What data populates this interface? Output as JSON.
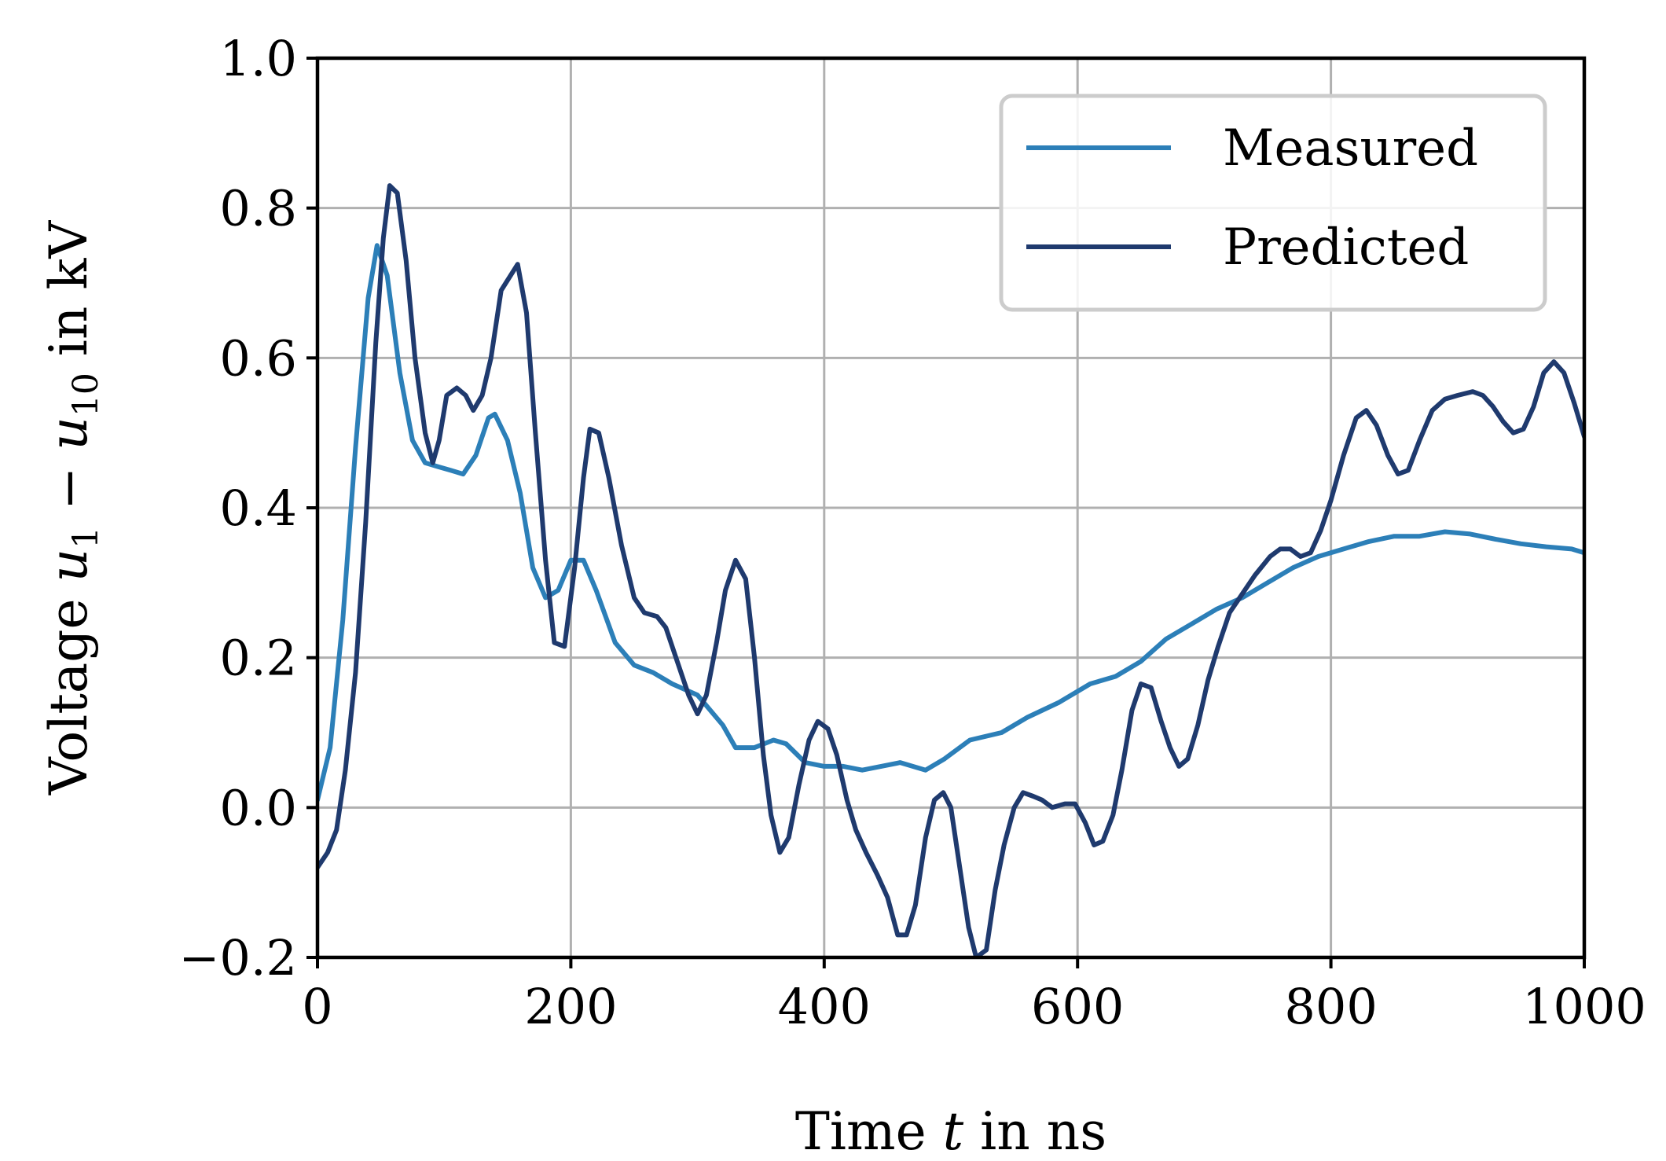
{
  "chart_data": {
    "type": "line",
    "title": "",
    "xlabel": "Time t in ns",
    "ylabel": "Voltage u1 − u10 in kV",
    "xlabel_parts": {
      "prefix": "Time ",
      "var": "t",
      "suffix": " in ns"
    },
    "ylabel_parts": {
      "prefix": "Voltage ",
      "var1": "u",
      "sub1": "1",
      "mid": " − ",
      "var2": "u",
      "sub2": "10",
      "suffix": " in kV"
    },
    "xlim": [
      0,
      1000
    ],
    "ylim": [
      -0.2,
      1.0
    ],
    "xticks": [
      0,
      200,
      400,
      600,
      800,
      1000
    ],
    "yticks": [
      -0.2,
      0.0,
      0.2,
      0.4,
      0.6,
      0.8,
      1.0
    ],
    "xtick_labels": [
      "0",
      "200",
      "400",
      "600",
      "800",
      "1000"
    ],
    "ytick_labels": [
      "−0.2",
      "0.0",
      "0.2",
      "0.4",
      "0.6",
      "0.8",
      "1.0"
    ],
    "grid": true,
    "legend_position": "top-right",
    "series": [
      {
        "name": "Measured",
        "color": "#2c7fb8",
        "points": [
          [
            0,
            0.01
          ],
          [
            10,
            0.08
          ],
          [
            20,
            0.25
          ],
          [
            30,
            0.48
          ],
          [
            40,
            0.68
          ],
          [
            47,
            0.75
          ],
          [
            55,
            0.71
          ],
          [
            65,
            0.58
          ],
          [
            75,
            0.49
          ],
          [
            85,
            0.46
          ],
          [
            95,
            0.455
          ],
          [
            105,
            0.45
          ],
          [
            115,
            0.445
          ],
          [
            125,
            0.47
          ],
          [
            135,
            0.52
          ],
          [
            140,
            0.525
          ],
          [
            150,
            0.49
          ],
          [
            160,
            0.42
          ],
          [
            170,
            0.32
          ],
          [
            180,
            0.28
          ],
          [
            190,
            0.29
          ],
          [
            200,
            0.33
          ],
          [
            210,
            0.33
          ],
          [
            220,
            0.29
          ],
          [
            235,
            0.22
          ],
          [
            250,
            0.19
          ],
          [
            265,
            0.18
          ],
          [
            280,
            0.165
          ],
          [
            300,
            0.15
          ],
          [
            320,
            0.11
          ],
          [
            330,
            0.08
          ],
          [
            345,
            0.08
          ],
          [
            360,
            0.09
          ],
          [
            370,
            0.085
          ],
          [
            385,
            0.06
          ],
          [
            400,
            0.055
          ],
          [
            415,
            0.055
          ],
          [
            430,
            0.05
          ],
          [
            445,
            0.055
          ],
          [
            460,
            0.06
          ],
          [
            480,
            0.05
          ],
          [
            495,
            0.065
          ],
          [
            515,
            0.09
          ],
          [
            540,
            0.1
          ],
          [
            560,
            0.12
          ],
          [
            585,
            0.14
          ],
          [
            610,
            0.165
          ],
          [
            630,
            0.175
          ],
          [
            650,
            0.195
          ],
          [
            670,
            0.225
          ],
          [
            690,
            0.245
          ],
          [
            710,
            0.265
          ],
          [
            730,
            0.28
          ],
          [
            750,
            0.3
          ],
          [
            770,
            0.32
          ],
          [
            790,
            0.335
          ],
          [
            810,
            0.345
          ],
          [
            830,
            0.355
          ],
          [
            850,
            0.362
          ],
          [
            870,
            0.362
          ],
          [
            890,
            0.368
          ],
          [
            910,
            0.365
          ],
          [
            930,
            0.358
          ],
          [
            950,
            0.352
          ],
          [
            970,
            0.348
          ],
          [
            990,
            0.345
          ],
          [
            1000,
            0.34
          ]
        ]
      },
      {
        "name": "Predicted",
        "color": "#1f3a6e",
        "points": [
          [
            0,
            -0.08
          ],
          [
            8,
            -0.06
          ],
          [
            15,
            -0.03
          ],
          [
            22,
            0.05
          ],
          [
            30,
            0.18
          ],
          [
            38,
            0.38
          ],
          [
            46,
            0.62
          ],
          [
            52,
            0.76
          ],
          [
            57,
            0.83
          ],
          [
            63,
            0.82
          ],
          [
            70,
            0.73
          ],
          [
            77,
            0.6
          ],
          [
            85,
            0.5
          ],
          [
            91,
            0.46
          ],
          [
            96,
            0.49
          ],
          [
            102,
            0.55
          ],
          [
            110,
            0.56
          ],
          [
            117,
            0.55
          ],
          [
            123,
            0.53
          ],
          [
            130,
            0.55
          ],
          [
            137,
            0.6
          ],
          [
            145,
            0.69
          ],
          [
            158,
            0.725
          ],
          [
            165,
            0.66
          ],
          [
            172,
            0.5
          ],
          [
            180,
            0.33
          ],
          [
            187,
            0.22
          ],
          [
            195,
            0.215
          ],
          [
            203,
            0.32
          ],
          [
            210,
            0.44
          ],
          [
            215,
            0.505
          ],
          [
            222,
            0.5
          ],
          [
            230,
            0.44
          ],
          [
            240,
            0.35
          ],
          [
            250,
            0.28
          ],
          [
            258,
            0.26
          ],
          [
            268,
            0.255
          ],
          [
            275,
            0.24
          ],
          [
            285,
            0.19
          ],
          [
            293,
            0.15
          ],
          [
            300,
            0.125
          ],
          [
            307,
            0.15
          ],
          [
            315,
            0.22
          ],
          [
            322,
            0.29
          ],
          [
            330,
            0.33
          ],
          [
            338,
            0.305
          ],
          [
            345,
            0.2
          ],
          [
            352,
            0.07
          ],
          [
            358,
            -0.01
          ],
          [
            365,
            -0.06
          ],
          [
            372,
            -0.04
          ],
          [
            380,
            0.03
          ],
          [
            388,
            0.09
          ],
          [
            395,
            0.115
          ],
          [
            403,
            0.105
          ],
          [
            410,
            0.07
          ],
          [
            418,
            0.01
          ],
          [
            425,
            -0.03
          ],
          [
            433,
            -0.06
          ],
          [
            442,
            -0.09
          ],
          [
            450,
            -0.12
          ],
          [
            458,
            -0.17
          ],
          [
            465,
            -0.17
          ],
          [
            472,
            -0.13
          ],
          [
            480,
            -0.04
          ],
          [
            487,
            0.01
          ],
          [
            494,
            0.02
          ],
          [
            500,
            0.0
          ],
          [
            507,
            -0.08
          ],
          [
            514,
            -0.16
          ],
          [
            520,
            -0.2
          ],
          [
            528,
            -0.19
          ],
          [
            535,
            -0.11
          ],
          [
            542,
            -0.05
          ],
          [
            550,
            0.0
          ],
          [
            557,
            0.02
          ],
          [
            565,
            0.015
          ],
          [
            572,
            0.01
          ],
          [
            580,
            0.0
          ],
          [
            590,
            0.005
          ],
          [
            598,
            0.005
          ],
          [
            606,
            -0.02
          ],
          [
            613,
            -0.05
          ],
          [
            620,
            -0.045
          ],
          [
            628,
            -0.01
          ],
          [
            635,
            0.05
          ],
          [
            643,
            0.13
          ],
          [
            650,
            0.165
          ],
          [
            658,
            0.16
          ],
          [
            666,
            0.115
          ],
          [
            673,
            0.08
          ],
          [
            680,
            0.055
          ],
          [
            687,
            0.065
          ],
          [
            695,
            0.11
          ],
          [
            703,
            0.17
          ],
          [
            711,
            0.215
          ],
          [
            720,
            0.26
          ],
          [
            730,
            0.285
          ],
          [
            740,
            0.31
          ],
          [
            752,
            0.335
          ],
          [
            760,
            0.345
          ],
          [
            768,
            0.345
          ],
          [
            776,
            0.335
          ],
          [
            784,
            0.34
          ],
          [
            792,
            0.37
          ],
          [
            800,
            0.41
          ],
          [
            810,
            0.47
          ],
          [
            820,
            0.52
          ],
          [
            828,
            0.53
          ],
          [
            836,
            0.51
          ],
          [
            845,
            0.47
          ],
          [
            853,
            0.445
          ],
          [
            861,
            0.45
          ],
          [
            870,
            0.49
          ],
          [
            880,
            0.53
          ],
          [
            890,
            0.545
          ],
          [
            900,
            0.55
          ],
          [
            912,
            0.555
          ],
          [
            920,
            0.55
          ],
          [
            928,
            0.535
          ],
          [
            936,
            0.515
          ],
          [
            944,
            0.5
          ],
          [
            952,
            0.505
          ],
          [
            960,
            0.535
          ],
          [
            968,
            0.58
          ],
          [
            976,
            0.595
          ],
          [
            984,
            0.58
          ],
          [
            992,
            0.54
          ],
          [
            1000,
            0.495
          ]
        ]
      }
    ]
  }
}
